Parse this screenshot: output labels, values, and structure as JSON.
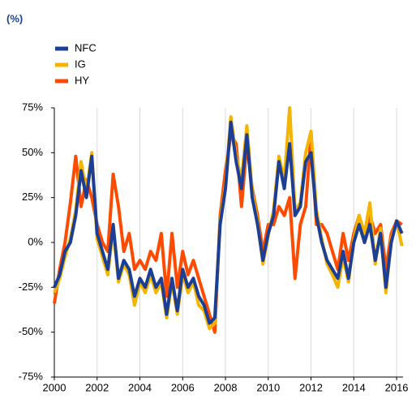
{
  "chart_data": {
    "type": "line",
    "title": "(%)",
    "x": [
      2000,
      2000.25,
      2000.5,
      2000.75,
      2001,
      2001.25,
      2001.5,
      2001.75,
      2002,
      2002.25,
      2002.5,
      2002.75,
      2003,
      2003.25,
      2003.5,
      2003.75,
      2004,
      2004.25,
      2004.5,
      2004.75,
      2005,
      2005.25,
      2005.5,
      2005.75,
      2006,
      2006.25,
      2006.5,
      2006.75,
      2007,
      2007.25,
      2007.5,
      2007.75,
      2008,
      2008.25,
      2008.5,
      2008.75,
      2009,
      2009.25,
      2009.5,
      2009.75,
      2010,
      2010.25,
      2010.5,
      2010.75,
      2011,
      2011.25,
      2011.5,
      2011.75,
      2012,
      2012.25,
      2012.5,
      2012.75,
      2013,
      2013.25,
      2013.5,
      2013.75,
      2014,
      2014.25,
      2014.5,
      2014.75,
      2015,
      2015.25,
      2015.5,
      2015.75,
      2016,
      2016.25
    ],
    "series": [
      {
        "name": "NFC",
        "color": "#1c3f94",
        "values": [
          -25,
          -18,
          -5,
          0,
          15,
          40,
          25,
          48,
          5,
          -5,
          -15,
          10,
          -20,
          -10,
          -15,
          -30,
          -20,
          -25,
          -15,
          -25,
          -20,
          -40,
          -20,
          -38,
          -15,
          -25,
          -20,
          -30,
          -35,
          -45,
          -42,
          10,
          30,
          67,
          45,
          30,
          60,
          25,
          10,
          -10,
          5,
          15,
          45,
          30,
          55,
          15,
          20,
          45,
          50,
          15,
          0,
          -10,
          -15,
          -20,
          -5,
          -20,
          0,
          10,
          0,
          10,
          -10,
          5,
          -25,
          0,
          12,
          5
        ]
      },
      {
        "name": "IG",
        "color": "#f5b400",
        "values": [
          -28,
          -20,
          -8,
          2,
          18,
          45,
          28,
          50,
          2,
          -8,
          -18,
          8,
          -22,
          -12,
          -18,
          -35,
          -22,
          -28,
          -18,
          -28,
          -22,
          -42,
          -22,
          -40,
          -18,
          -28,
          -22,
          -35,
          -38,
          -48,
          -45,
          12,
          32,
          70,
          48,
          35,
          65,
          28,
          12,
          -12,
          4,
          18,
          48,
          35,
          75,
          18,
          22,
          50,
          62,
          18,
          2,
          -12,
          -18,
          -25,
          -8,
          -22,
          2,
          15,
          5,
          22,
          -12,
          8,
          -28,
          2,
          12,
          -2
        ]
      },
      {
        "name": "HY",
        "color": "#ff4b00",
        "values": [
          -34,
          -15,
          0,
          22,
          48,
          20,
          35,
          25,
          10,
          0,
          -5,
          38,
          20,
          -5,
          5,
          -15,
          -10,
          -15,
          -5,
          -10,
          5,
          -30,
          5,
          -25,
          -5,
          -18,
          -10,
          -20,
          -30,
          -40,
          -50,
          15,
          40,
          60,
          55,
          20,
          55,
          30,
          15,
          -5,
          10,
          10,
          20,
          15,
          25,
          -20,
          10,
          20,
          60,
          10,
          10,
          5,
          -5,
          -15,
          5,
          -10,
          5,
          15,
          0,
          15,
          5,
          10,
          -15,
          5,
          12,
          10
        ]
      }
    ],
    "xlim": [
      2000,
      2016.3
    ],
    "xticks": [
      2000,
      2002,
      2004,
      2006,
      2008,
      2010,
      2012,
      2014,
      2016
    ],
    "ylim": [
      -75,
      75
    ],
    "yticks": [
      {
        "value": -75,
        "label": "-75%"
      },
      {
        "value": -50,
        "label": "-50%"
      },
      {
        "value": -25,
        "label": "-25%"
      },
      {
        "value": 0,
        "label": "0%"
      },
      {
        "value": 25,
        "label": "25%"
      },
      {
        "value": 50,
        "label": "50%"
      },
      {
        "value": 75,
        "label": "75%"
      }
    ],
    "grid": true
  }
}
